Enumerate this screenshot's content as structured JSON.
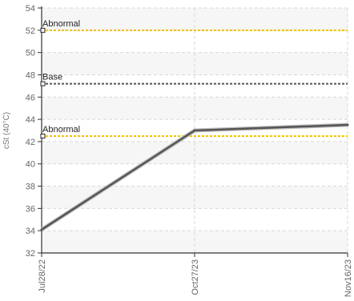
{
  "chart_data": {
    "type": "line",
    "ylabel": "cSt (40°C)",
    "ylim": [
      32,
      54
    ],
    "yticks": [
      32,
      34,
      36,
      38,
      40,
      42,
      44,
      46,
      48,
      50,
      52,
      54
    ],
    "ytick_labels": [
      "32",
      "34",
      "36",
      "38",
      "40",
      "42",
      "44",
      "46",
      "48",
      "50",
      "52",
      "54"
    ],
    "categories": [
      "Jul28/22",
      "Oct27/23",
      "Nov16/23"
    ],
    "series": [
      {
        "values": [
          34.1,
          43.0,
          43.5
        ],
        "color": "#555555"
      }
    ],
    "reference_lines": [
      {
        "label": "Abnormal",
        "value": 52.0,
        "color": "#f2c200"
      },
      {
        "label": "Base",
        "value": 47.2,
        "color": "#555555"
      },
      {
        "label": "Abnormal",
        "value": 42.5,
        "color": "#f2c200"
      }
    ],
    "grid": true,
    "legend": "none"
  }
}
